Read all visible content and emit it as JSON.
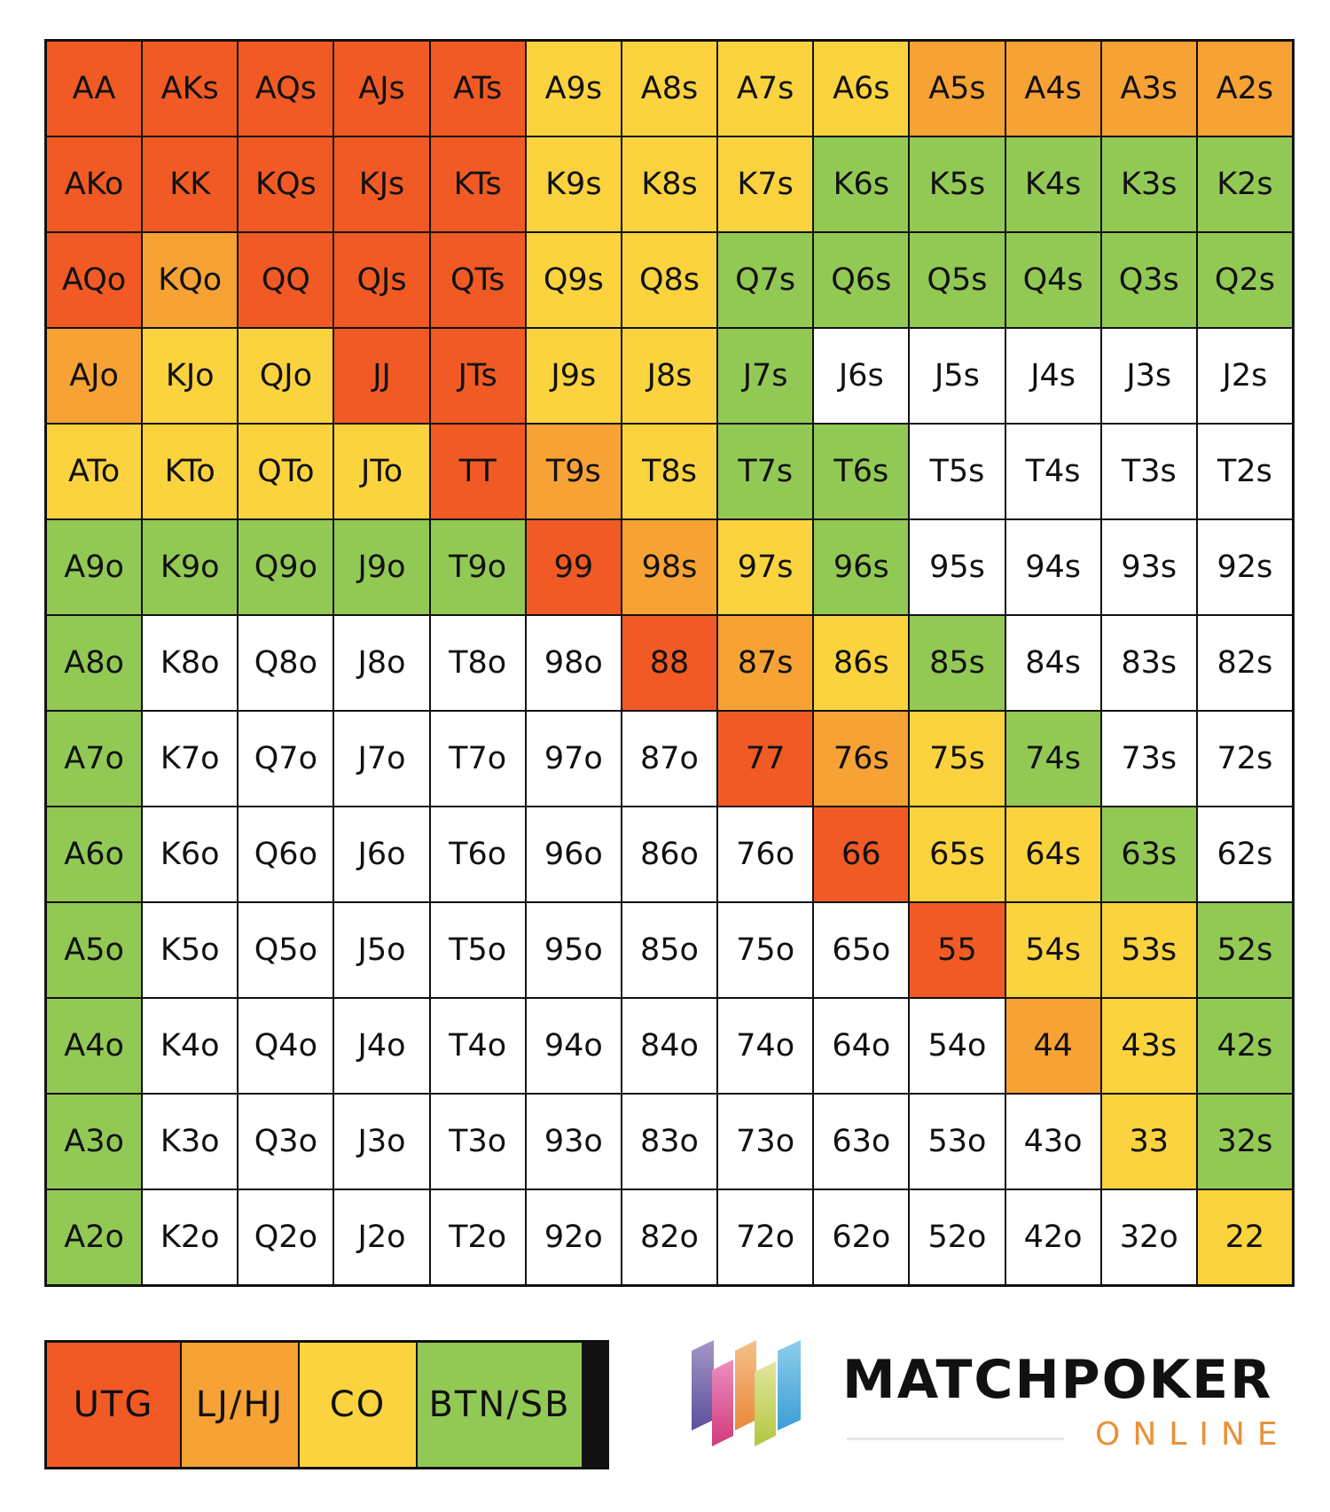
{
  "chart_data": {
    "type": "table",
    "positions": [
      {
        "code": "U",
        "label": "UTG",
        "color": "#F15A24"
      },
      {
        "code": "L",
        "label": "LJ/HJ",
        "color": "#F7A234"
      },
      {
        "code": "C",
        "label": "CO",
        "color": "#FBD33F"
      },
      {
        "code": "B",
        "label": "BTN/SB",
        "color": "#92C955"
      }
    ],
    "unassigned_color": "#FFFFFF",
    "hands": [
      [
        "AA",
        "AKs",
        "AQs",
        "AJs",
        "ATs",
        "A9s",
        "A8s",
        "A7s",
        "A6s",
        "A5s",
        "A4s",
        "A3s",
        "A2s"
      ],
      [
        "AKo",
        "KK",
        "KQs",
        "KJs",
        "KTs",
        "K9s",
        "K8s",
        "K7s",
        "K6s",
        "K5s",
        "K4s",
        "K3s",
        "K2s"
      ],
      [
        "AQo",
        "KQo",
        "QQ",
        "QJs",
        "QTs",
        "Q9s",
        "Q8s",
        "Q7s",
        "Q6s",
        "Q5s",
        "Q4s",
        "Q3s",
        "Q2s"
      ],
      [
        "AJo",
        "KJo",
        "QJo",
        "JJ",
        "JTs",
        "J9s",
        "J8s",
        "J7s",
        "J6s",
        "J5s",
        "J4s",
        "J3s",
        "J2s"
      ],
      [
        "ATo",
        "KTo",
        "QTo",
        "JTo",
        "TT",
        "T9s",
        "T8s",
        "T7s",
        "T6s",
        "T5s",
        "T4s",
        "T3s",
        "T2s"
      ],
      [
        "A9o",
        "K9o",
        "Q9o",
        "J9o",
        "T9o",
        "99",
        "98s",
        "97s",
        "96s",
        "95s",
        "94s",
        "93s",
        "92s"
      ],
      [
        "A8o",
        "K8o",
        "Q8o",
        "J8o",
        "T8o",
        "98o",
        "88",
        "87s",
        "86s",
        "85s",
        "84s",
        "83s",
        "82s"
      ],
      [
        "A7o",
        "K7o",
        "Q7o",
        "J7o",
        "T7o",
        "97o",
        "87o",
        "77",
        "76s",
        "75s",
        "74s",
        "73s",
        "72s"
      ],
      [
        "A6o",
        "K6o",
        "Q6o",
        "J6o",
        "T6o",
        "96o",
        "86o",
        "76o",
        "66",
        "65s",
        "64s",
        "63s",
        "62s"
      ],
      [
        "A5o",
        "K5o",
        "Q5o",
        "J5o",
        "T5o",
        "95o",
        "85o",
        "75o",
        "65o",
        "55",
        "54s",
        "53s",
        "52s"
      ],
      [
        "A4o",
        "K4o",
        "Q4o",
        "J4o",
        "T4o",
        "94o",
        "84o",
        "74o",
        "64o",
        "54o",
        "44",
        "43s",
        "42s"
      ],
      [
        "A3o",
        "K3o",
        "Q3o",
        "J3o",
        "T3o",
        "93o",
        "83o",
        "73o",
        "63o",
        "53o",
        "43o",
        "33",
        "32s"
      ],
      [
        "A2o",
        "K2o",
        "Q2o",
        "J2o",
        "T2o",
        "92o",
        "82o",
        "72o",
        "62o",
        "52o",
        "42o",
        "32o",
        "22"
      ]
    ],
    "open_position": [
      [
        "U",
        "U",
        "U",
        "U",
        "U",
        "C",
        "C",
        "C",
        "C",
        "L",
        "L",
        "L",
        "L"
      ],
      [
        "U",
        "U",
        "U",
        "U",
        "U",
        "C",
        "C",
        "C",
        "B",
        "B",
        "B",
        "B",
        "B"
      ],
      [
        "U",
        "L",
        "U",
        "U",
        "U",
        "C",
        "C",
        "B",
        "B",
        "B",
        "B",
        "B",
        "B"
      ],
      [
        "L",
        "C",
        "C",
        "U",
        "U",
        "C",
        "C",
        "B",
        "",
        "",
        "",
        "",
        ""
      ],
      [
        "C",
        "C",
        "C",
        "C",
        "U",
        "L",
        "C",
        "B",
        "B",
        "",
        "",
        "",
        ""
      ],
      [
        "B",
        "B",
        "B",
        "B",
        "B",
        "U",
        "L",
        "C",
        "B",
        "",
        "",
        "",
        ""
      ],
      [
        "B",
        "",
        "",
        "",
        "",
        "",
        "U",
        "L",
        "C",
        "B",
        "",
        "",
        ""
      ],
      [
        "B",
        "",
        "",
        "",
        "",
        "",
        "",
        "U",
        "L",
        "C",
        "B",
        "",
        ""
      ],
      [
        "B",
        "",
        "",
        "",
        "",
        "",
        "",
        "",
        "U",
        "C",
        "C",
        "B",
        ""
      ],
      [
        "B",
        "",
        "",
        "",
        "",
        "",
        "",
        "",
        "",
        "U",
        "C",
        "C",
        "B"
      ],
      [
        "B",
        "",
        "",
        "",
        "",
        "",
        "",
        "",
        "",
        "",
        "L",
        "C",
        "B"
      ],
      [
        "B",
        "",
        "",
        "",
        "",
        "",
        "",
        "",
        "",
        "",
        "",
        "C",
        "B"
      ],
      [
        "B",
        "",
        "",
        "",
        "",
        "",
        "",
        "",
        "",
        "",
        "",
        "",
        "C"
      ]
    ]
  },
  "logo": {
    "brand": "MATCHPOKER",
    "sub": "ONLINE"
  }
}
